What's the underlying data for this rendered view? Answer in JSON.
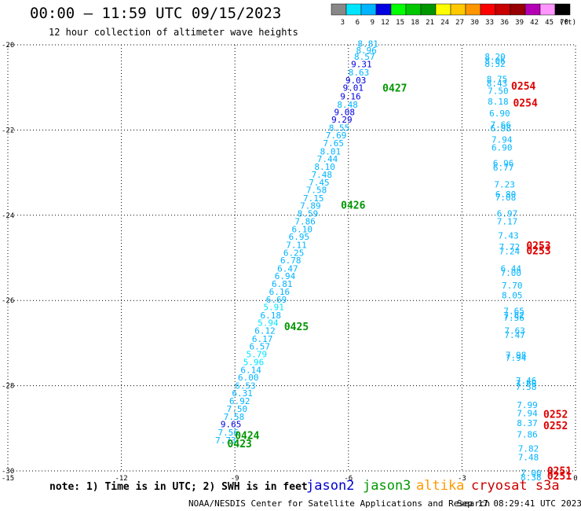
{
  "header": {
    "title": "00:00 – 11:59 UTC 09/15/2023",
    "subtitle": "12 hour collection of altimeter wave heights"
  },
  "colorbar": {
    "unit": "(ft)",
    "ticks": [
      "3",
      "6",
      "9",
      "12",
      "15",
      "18",
      "21",
      "24",
      "27",
      "30",
      "33",
      "36",
      "39",
      "42",
      "45",
      "70"
    ],
    "colors": [
      "#888888",
      "#00e5ff",
      "#00b4ff",
      "#0000e0",
      "#00ff00",
      "#00c800",
      "#009600",
      "#ffff00",
      "#ffc800",
      "#ff9600",
      "#ff0000",
      "#c80000",
      "#960000",
      "#b400b4",
      "#ff96ff",
      "#000000"
    ]
  },
  "footer": {
    "note": "note: 1) Time is in UTC; 2) SWH is in feet",
    "satellites": [
      {
        "name": "jason2",
        "color": "#0000cc"
      },
      {
        "name": "jason3",
        "color": "#009900"
      },
      {
        "name": "altika",
        "color": "#ff9900"
      },
      {
        "name": "cryosat s3a",
        "color": "#cc0000"
      }
    ],
    "credit": "NOAA/NESDIS Center for Satellite Applications and Research",
    "timestamp": "Sep 17 08:29:41 UTC 2023"
  },
  "chart_data": {
    "type": "scatter",
    "xlim": [
      -15,
      0
    ],
    "ylim": [
      -30,
      -20
    ],
    "x_ticks": [
      "-15",
      "-12",
      "-9",
      "-6",
      "-3",
      "0"
    ],
    "y_ticks": [
      "-20",
      "-22",
      "-24",
      "-26",
      "-28",
      "-30"
    ],
    "grid": true,
    "track_a": {
      "points": [
        {
          "x": -5.76,
          "y": -20.05,
          "v": "8.81",
          "c": "#00b4ff"
        },
        {
          "x": -5.8,
          "y": -20.2,
          "v": "8.96",
          "c": "#00b4ff"
        },
        {
          "x": -5.85,
          "y": -20.35,
          "v": "8.57",
          "c": "#00b4ff"
        },
        {
          "x": -5.93,
          "y": -20.53,
          "v": "9.31",
          "c": "#0000e0"
        },
        {
          "x": -6.0,
          "y": -20.72,
          "v": "8.63",
          "c": "#00b4ff"
        },
        {
          "x": -6.08,
          "y": -20.9,
          "v": "9.03",
          "c": "#0000e0"
        },
        {
          "x": -6.15,
          "y": -21.08,
          "v": "9.01",
          "c": "#0000e0"
        },
        {
          "x": -6.22,
          "y": -21.28,
          "v": "9.16",
          "c": "#0000e0"
        },
        {
          "x": -6.3,
          "y": -21.48,
          "v": "8.48",
          "c": "#00b4ff"
        },
        {
          "x": -6.38,
          "y": -21.65,
          "v": "9.08",
          "c": "#0000e0"
        },
        {
          "x": -6.45,
          "y": -21.83,
          "v": "9.29",
          "c": "#0000e0"
        },
        {
          "x": -6.52,
          "y": -22.02,
          "v": "8.55",
          "c": "#00b4ff"
        },
        {
          "x": -6.6,
          "y": -22.2,
          "v": "7.69",
          "c": "#00b4ff"
        },
        {
          "x": -6.67,
          "y": -22.38,
          "v": "7.65",
          "c": "#00b4ff"
        },
        {
          "x": -6.75,
          "y": -22.57,
          "v": "8.01",
          "c": "#00b4ff"
        },
        {
          "x": -6.83,
          "y": -22.75,
          "v": "7.44",
          "c": "#00b4ff"
        },
        {
          "x": -6.9,
          "y": -22.93,
          "v": "8.10",
          "c": "#00b4ff"
        },
        {
          "x": -6.98,
          "y": -23.12,
          "v": "7.48",
          "c": "#00b4ff"
        },
        {
          "x": -7.05,
          "y": -23.3,
          "v": "7.45",
          "c": "#00b4ff"
        },
        {
          "x": -7.12,
          "y": -23.48,
          "v": "7.58",
          "c": "#00b4ff"
        },
        {
          "x": -7.2,
          "y": -23.67,
          "v": "7.15",
          "c": "#00b4ff"
        },
        {
          "x": -7.28,
          "y": -23.85,
          "v": "7.89",
          "c": "#00b4ff"
        },
        {
          "x": -7.35,
          "y": -24.03,
          "v": "8.59",
          "c": "#00b4ff"
        },
        {
          "x": -7.42,
          "y": -24.22,
          "v": "7.86",
          "c": "#00b4ff"
        },
        {
          "x": -7.5,
          "y": -24.4,
          "v": "6.10",
          "c": "#00b4ff"
        },
        {
          "x": -7.58,
          "y": -24.58,
          "v": "6.95",
          "c": "#00b4ff"
        },
        {
          "x": -7.65,
          "y": -24.77,
          "v": "7.11",
          "c": "#00b4ff"
        },
        {
          "x": -7.72,
          "y": -24.95,
          "v": "6.25",
          "c": "#00b4ff"
        },
        {
          "x": -7.8,
          "y": -25.13,
          "v": "6.78",
          "c": "#00b4ff"
        },
        {
          "x": -7.88,
          "y": -25.32,
          "v": "6.47",
          "c": "#00b4ff"
        },
        {
          "x": -7.95,
          "y": -25.5,
          "v": "6.94",
          "c": "#00b4ff"
        },
        {
          "x": -8.03,
          "y": -25.68,
          "v": "6.81",
          "c": "#00b4ff"
        },
        {
          "x": -8.1,
          "y": -25.87,
          "v": "6.16",
          "c": "#00b4ff"
        },
        {
          "x": -8.18,
          "y": -26.05,
          "v": "6.69",
          "c": "#00b4ff"
        },
        {
          "x": -8.25,
          "y": -26.23,
          "v": "5.91",
          "c": "#00e5ff"
        },
        {
          "x": -8.33,
          "y": -26.42,
          "v": "6.18",
          "c": "#00b4ff"
        },
        {
          "x": -8.4,
          "y": -26.6,
          "v": "5.94",
          "c": "#00e5ff"
        },
        {
          "x": -8.48,
          "y": -26.78,
          "v": "6.12",
          "c": "#00b4ff"
        },
        {
          "x": -8.55,
          "y": -26.97,
          "v": "6.17",
          "c": "#00b4ff"
        },
        {
          "x": -8.62,
          "y": -27.15,
          "v": "6.57",
          "c": "#00b4ff"
        },
        {
          "x": -8.7,
          "y": -27.33,
          "v": "5.79",
          "c": "#00e5ff"
        },
        {
          "x": -8.78,
          "y": -27.52,
          "v": "5.96",
          "c": "#00e5ff"
        },
        {
          "x": -8.85,
          "y": -27.7,
          "v": "6.14",
          "c": "#00b4ff"
        },
        {
          "x": -8.92,
          "y": -27.88,
          "v": "6.00",
          "c": "#00b4ff"
        },
        {
          "x": -9.0,
          "y": -28.07,
          "v": "6.53",
          "c": "#00b4ff"
        },
        {
          "x": -9.08,
          "y": -28.25,
          "v": "6.31",
          "c": "#00b4ff"
        },
        {
          "x": -9.15,
          "y": -28.43,
          "v": "6.92",
          "c": "#00b4ff"
        },
        {
          "x": -9.22,
          "y": -28.62,
          "v": "7.50",
          "c": "#00b4ff"
        },
        {
          "x": -9.3,
          "y": -28.8,
          "v": "7.58",
          "c": "#00b4ff"
        },
        {
          "x": -9.38,
          "y": -28.98,
          "v": "9.65",
          "c": "#0000e0"
        },
        {
          "x": -9.45,
          "y": -29.17,
          "v": "7.56",
          "c": "#00b4ff"
        },
        {
          "x": -9.52,
          "y": -29.35,
          "v": "7.73",
          "c": "#00b4ff"
        }
      ],
      "passes": [
        {
          "x": -5.1,
          "y": -21.1,
          "label": "0427",
          "color": "#009600"
        },
        {
          "x": -6.2,
          "y": -23.85,
          "label": "0426",
          "color": "#009600"
        },
        {
          "x": -7.7,
          "y": -26.7,
          "label": "0425",
          "color": "#009600"
        },
        {
          "x": -9.0,
          "y": -29.25,
          "label": "0424",
          "color": "#009600"
        },
        {
          "x": -9.2,
          "y": -29.45,
          "label": "0423",
          "color": "#009600"
        }
      ]
    },
    "track_b": {
      "points": [
        {
          "x": -2.4,
          "y": -20.35,
          "v": "8.20",
          "c": "#00b4ff"
        },
        {
          "x": -2.4,
          "y": -20.45,
          "v": "8.06",
          "c": "#00b4ff"
        },
        {
          "x": -2.4,
          "y": -20.52,
          "v": "8.52",
          "c": "#00b4ff"
        },
        {
          "x": -2.35,
          "y": -20.88,
          "v": "8.75",
          "c": "#00b4ff"
        },
        {
          "x": -2.35,
          "y": -20.98,
          "v": "8.43",
          "c": "#00b4ff"
        },
        {
          "x": -2.32,
          "y": -21.15,
          "v": "7.50",
          "c": "#00b4ff"
        },
        {
          "x": -2.32,
          "y": -21.4,
          "v": "8.18",
          "c": "#00b4ff"
        },
        {
          "x": -2.28,
          "y": -21.68,
          "v": "6.90",
          "c": "#00b4ff"
        },
        {
          "x": -2.25,
          "y": -21.95,
          "v": "7.66",
          "c": "#00b4ff"
        },
        {
          "x": -2.25,
          "y": -22.03,
          "v": "6.98",
          "c": "#00b4ff"
        },
        {
          "x": -2.22,
          "y": -22.3,
          "v": "7.94",
          "c": "#00b4ff"
        },
        {
          "x": -2.22,
          "y": -22.48,
          "v": "6.90",
          "c": "#00b4ff"
        },
        {
          "x": -2.18,
          "y": -22.85,
          "v": "6.96",
          "c": "#00b4ff"
        },
        {
          "x": -2.18,
          "y": -22.95,
          "v": "6.77",
          "c": "#00b4ff"
        },
        {
          "x": -2.15,
          "y": -23.35,
          "v": "7.23",
          "c": "#00b4ff"
        },
        {
          "x": -2.12,
          "y": -23.58,
          "v": "6.80",
          "c": "#00b4ff"
        },
        {
          "x": -2.12,
          "y": -23.65,
          "v": "7.08",
          "c": "#00b4ff"
        },
        {
          "x": -2.08,
          "y": -24.03,
          "v": "6.97",
          "c": "#00b4ff"
        },
        {
          "x": -2.08,
          "y": -24.22,
          "v": "7.17",
          "c": "#00b4ff"
        },
        {
          "x": -2.05,
          "y": -24.55,
          "v": "7.43",
          "c": "#00b4ff"
        },
        {
          "x": -2.02,
          "y": -24.82,
          "v": "7.72",
          "c": "#00b4ff"
        },
        {
          "x": -2.02,
          "y": -24.92,
          "v": "7.24",
          "c": "#00b4ff"
        },
        {
          "x": -1.98,
          "y": -25.32,
          "v": "6.44",
          "c": "#00b4ff"
        },
        {
          "x": -1.98,
          "y": -25.42,
          "v": "7.00",
          "c": "#00b4ff"
        },
        {
          "x": -1.95,
          "y": -25.72,
          "v": "7.70",
          "c": "#00b4ff"
        },
        {
          "x": -1.95,
          "y": -25.95,
          "v": "8.05",
          "c": "#00b4ff"
        },
        {
          "x": -1.9,
          "y": -26.32,
          "v": "7.65",
          "c": "#00b4ff"
        },
        {
          "x": -1.9,
          "y": -26.42,
          "v": "7.82",
          "c": "#00b4ff"
        },
        {
          "x": -1.9,
          "y": -26.48,
          "v": "7.56",
          "c": "#00b4ff"
        },
        {
          "x": -1.88,
          "y": -26.78,
          "v": "7.63",
          "c": "#00b4ff"
        },
        {
          "x": -1.88,
          "y": -26.88,
          "v": "7.47",
          "c": "#00b4ff"
        },
        {
          "x": -1.85,
          "y": -27.35,
          "v": "7.98",
          "c": "#00b4ff"
        },
        {
          "x": -1.85,
          "y": -27.42,
          "v": "7.94",
          "c": "#00b4ff"
        },
        {
          "x": -1.58,
          "y": -27.95,
          "v": "7.46",
          "c": "#00b4ff"
        },
        {
          "x": -1.58,
          "y": -28.02,
          "v": "7.60",
          "c": "#00b4ff"
        },
        {
          "x": -1.58,
          "y": -28.1,
          "v": "7.58",
          "c": "#00b4ff"
        },
        {
          "x": -1.55,
          "y": -28.52,
          "v": "7.99",
          "c": "#00b4ff"
        },
        {
          "x": -1.55,
          "y": -28.72,
          "v": "7.94",
          "c": "#00b4ff"
        },
        {
          "x": -1.55,
          "y": -28.95,
          "v": "8.37",
          "c": "#00b4ff"
        },
        {
          "x": -1.55,
          "y": -29.22,
          "v": "7.86",
          "c": "#00b4ff"
        },
        {
          "x": -1.52,
          "y": -29.55,
          "v": "7.82",
          "c": "#00b4ff"
        },
        {
          "x": -1.52,
          "y": -29.75,
          "v": "7.48",
          "c": "#00b4ff"
        },
        {
          "x": -1.45,
          "y": -30.12,
          "v": "7.00",
          "c": "#00b4ff"
        },
        {
          "x": -1.45,
          "y": -30.22,
          "v": "8.38",
          "c": "#00b4ff"
        }
      ],
      "passes": [
        {
          "x": -1.7,
          "y": -21.05,
          "label": "0254",
          "color": "#dd0000"
        },
        {
          "x": -1.65,
          "y": -21.45,
          "label": "0254",
          "color": "#dd0000"
        },
        {
          "x": -1.3,
          "y": -24.8,
          "label": "0253",
          "color": "#dd0000"
        },
        {
          "x": -1.3,
          "y": -24.92,
          "label": "0253",
          "color": "#dd0000"
        },
        {
          "x": -0.85,
          "y": -28.75,
          "label": "0252",
          "color": "#dd0000"
        },
        {
          "x": -0.85,
          "y": -29.02,
          "label": "0252",
          "color": "#dd0000"
        },
        {
          "x": -0.75,
          "y": -30.08,
          "label": "0251",
          "color": "#dd0000"
        },
        {
          "x": -0.75,
          "y": -30.2,
          "label": "0251",
          "color": "#dd0000"
        }
      ]
    }
  }
}
